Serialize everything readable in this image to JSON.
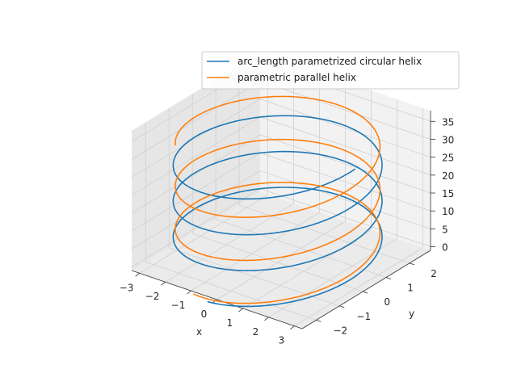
{
  "chart_data": {
    "type": "line",
    "projection": "3d",
    "title": "",
    "xlabel": "x",
    "ylabel": "y",
    "zlabel": "",
    "xlim": [
      -3.3,
      3.3
    ],
    "ylim": [
      -2.6,
      2.9
    ],
    "zlim": [
      -1,
      38
    ],
    "xticks": [
      -3,
      -2,
      -1,
      0,
      1,
      2,
      3
    ],
    "yticks": [
      -2,
      -1,
      0,
      1,
      2
    ],
    "zticks": [
      0,
      5,
      10,
      15,
      20,
      25,
      30,
      35
    ],
    "grid": true,
    "legend_position": "upper-right",
    "series": [
      {
        "name": "arc_length parametrized  circular helix",
        "color": "#1f77b4",
        "curve": "helix",
        "radius": 3,
        "z_per_turn": 10,
        "t_range": [
          -1.5708,
          18.8496
        ]
      },
      {
        "name": "parametric  parallel helix",
        "color": "#ff7f0e",
        "curve": "parallel-helix",
        "radius": 3,
        "z_per_turn": 12,
        "t_range": [
          -1.8,
          16.5
        ]
      }
    ]
  }
}
